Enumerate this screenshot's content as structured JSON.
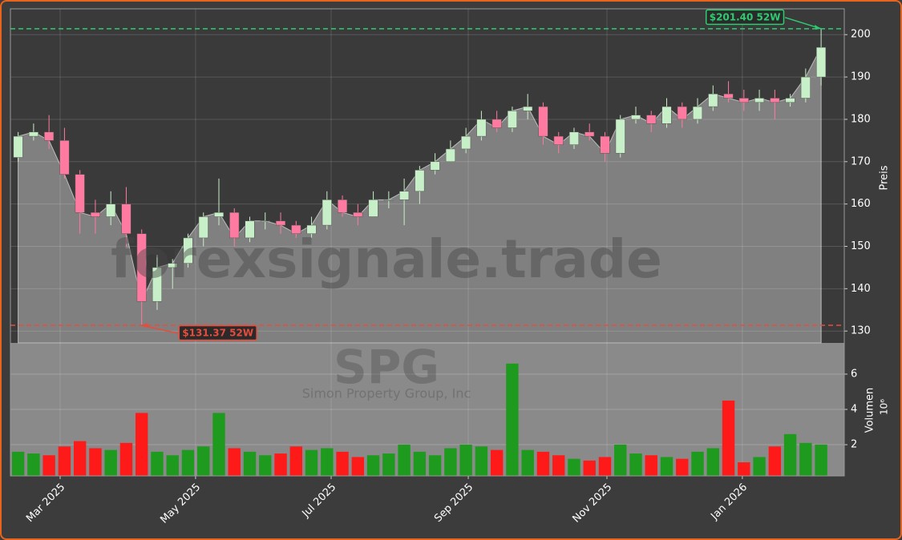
{
  "chart_data": {
    "type": "candlestick",
    "watermark": "forexsignale.trade",
    "symbol": "SPG",
    "company": "Simon Property Group, Inc",
    "categories": [
      null,
      null,
      null,
      null,
      null,
      null,
      null,
      null,
      null,
      null,
      null,
      null,
      null,
      null,
      null,
      null,
      null,
      null,
      null,
      null,
      null,
      null,
      null,
      null,
      null,
      null,
      null,
      null,
      null,
      null,
      null,
      null,
      null,
      null,
      null,
      null,
      null,
      null,
      null,
      null,
      null,
      null,
      null,
      null,
      null,
      null,
      null,
      null,
      null,
      null,
      null,
      null,
      null
    ],
    "open": [
      171,
      176,
      177,
      175,
      167,
      158,
      157,
      160,
      153,
      137,
      145,
      146,
      152,
      157,
      158,
      152,
      156,
      156,
      155,
      153,
      155,
      161,
      158,
      157,
      161,
      161,
      163,
      168,
      170,
      173,
      176,
      180,
      178,
      182,
      183,
      176,
      174,
      177,
      176,
      172,
      180,
      181,
      179,
      183,
      180,
      183,
      186,
      185,
      184,
      185,
      184,
      185,
      190
    ],
    "high": [
      177,
      179,
      181,
      178,
      168,
      161,
      163,
      164,
      154,
      148,
      147,
      153,
      158,
      166,
      159,
      157,
      158,
      158,
      156,
      157,
      163,
      162,
      160,
      163,
      163,
      166,
      169,
      172,
      175,
      178,
      182,
      182,
      183,
      186,
      184,
      177,
      178,
      179,
      177,
      181,
      183,
      182,
      185,
      184,
      185,
      188,
      189,
      187,
      187,
      187,
      186,
      192,
      201.4
    ],
    "low": [
      170,
      175,
      173,
      166,
      153,
      153,
      155,
      150,
      131.37,
      135,
      140,
      145,
      150,
      155,
      150,
      151,
      154,
      153,
      152,
      152,
      154,
      157,
      155,
      157,
      159,
      155,
      160,
      167,
      170,
      172,
      175,
      177,
      177,
      180,
      174,
      172,
      173,
      175,
      170,
      171,
      179,
      177,
      178,
      178,
      179,
      182,
      184,
      182,
      182,
      180,
      183,
      184,
      188
    ],
    "close": [
      176,
      177,
      175,
      167,
      158,
      157,
      160,
      153,
      137,
      145,
      146,
      152,
      157,
      158,
      152,
      156,
      156,
      155,
      153,
      155,
      161,
      158,
      157,
      161,
      161,
      163,
      168,
      170,
      173,
      176,
      180,
      178,
      182,
      183,
      176,
      174,
      177,
      176,
      172,
      180,
      181,
      179,
      183,
      180,
      183,
      186,
      185,
      184,
      185,
      184,
      185,
      190,
      197
    ],
    "volume": [
      1.6,
      1.5,
      1.4,
      1.9,
      2.2,
      1.8,
      1.7,
      2.1,
      3.8,
      1.6,
      1.4,
      1.7,
      1.9,
      3.8,
      1.8,
      1.6,
      1.4,
      1.5,
      1.9,
      1.7,
      1.8,
      1.6,
      1.3,
      1.4,
      1.5,
      2.0,
      1.6,
      1.4,
      1.8,
      2.0,
      1.9,
      1.7,
      6.6,
      1.7,
      1.6,
      1.4,
      1.2,
      1.1,
      1.3,
      2.0,
      1.5,
      1.4,
      1.3,
      1.2,
      1.6,
      1.8,
      4.5,
      1.0,
      1.3,
      1.9,
      2.6,
      2.1,
      2.0
    ],
    "xlim": [
      -0.5,
      53.5
    ],
    "xticks": [
      {
        "value": 2.72,
        "label": "Mar 2025"
      },
      {
        "value": 11.49,
        "label": "May 2025"
      },
      {
        "value": 20.27,
        "label": "Jul 2025"
      },
      {
        "value": 29.15,
        "label": "Sep 2025"
      },
      {
        "value": 38.13,
        "label": "Nov 2025"
      },
      {
        "value": 46.9,
        "label": "Jan 2026"
      }
    ],
    "ylim": [
      127.2,
      206.1
    ],
    "yticks": [
      130,
      140,
      150,
      160,
      170,
      180,
      190,
      200
    ],
    "ylabel": "Preis",
    "volume_ylim": [
      0.23,
      7.77
    ],
    "volume_yticks": [
      2,
      4,
      6
    ],
    "volume_ylabel": "Volumen",
    "volume_exponent": "10⁶",
    "annotations": [
      {
        "label": "$201.40 52W",
        "value": 201.4,
        "color": "#2ecc71"
      },
      {
        "label": "$131.37 52W",
        "value": 131.37,
        "color": "#e74c3c"
      }
    ],
    "up_color": "#c8f0c8",
    "down_color": "#ff7aa0",
    "volume_up_color": "#1e9a1e",
    "volume_down_color": "#ff1a1a",
    "area_color": "#808080",
    "grid": true
  }
}
